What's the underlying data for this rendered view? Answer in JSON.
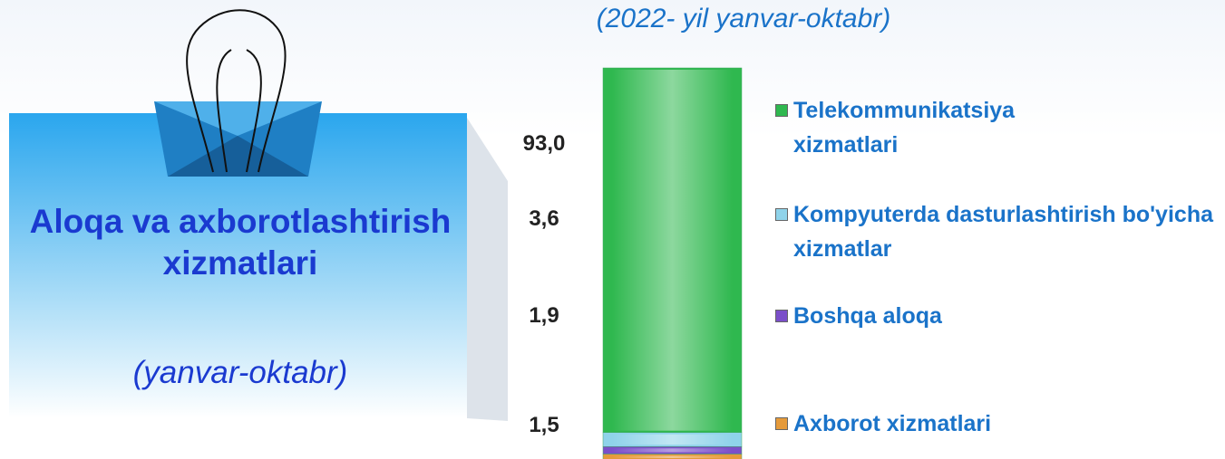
{
  "panel": {
    "title": "Aloqa va axborotlashtirish xizmatlari",
    "subtitle": "(yanvar-oktabr)"
  },
  "chart_data": {
    "type": "stacked_bar",
    "subtitle": "(2022- yil yanvar-oktabr)",
    "series": [
      {
        "name": "Telekommunikatsiya xizmatlari",
        "color": "#2fb84f",
        "values": [
          93.0
        ],
        "value_labels": [
          "93,0"
        ]
      },
      {
        "name": "Kompyuterda dasturlashtirish bo'yicha xizmatlar",
        "color": "#8fd3ea",
        "values": [
          3.6
        ],
        "value_labels": [
          "3,6"
        ]
      },
      {
        "name": "Boshqa aloqa",
        "color": "#7b4fc9",
        "values": [
          1.9
        ],
        "value_labels": [
          "1,9"
        ]
      },
      {
        "name": "Axborot xizmatlari",
        "color": "#e59a3a",
        "values": [
          1.5
        ],
        "value_labels": [
          "1,5"
        ]
      }
    ]
  }
}
